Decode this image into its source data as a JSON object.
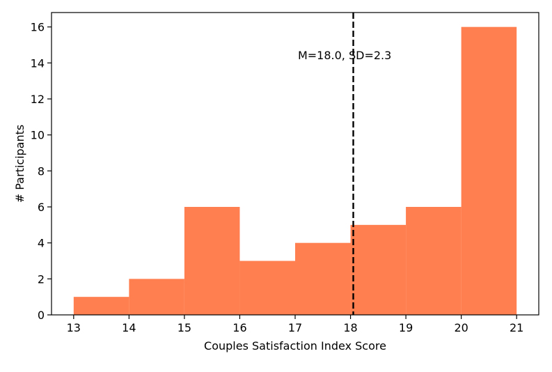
{
  "chart_data": {
    "type": "bar",
    "subtype": "histogram",
    "bins": [
      {
        "start": 13,
        "end": 14,
        "count": 1
      },
      {
        "start": 14,
        "end": 15,
        "count": 2
      },
      {
        "start": 15,
        "end": 16,
        "count": 6
      },
      {
        "start": 16,
        "end": 17,
        "count": 3
      },
      {
        "start": 17,
        "end": 18,
        "count": 4
      },
      {
        "start": 18,
        "end": 19,
        "count": 5
      },
      {
        "start": 19,
        "end": 20,
        "count": 6
      },
      {
        "start": 20,
        "end": 21,
        "count": 16
      }
    ],
    "xlabel": "Couples Satisfaction Index Score",
    "ylabel": "# Participants",
    "xlim": [
      12.6,
      21.4
    ],
    "ylim": [
      0,
      16.8
    ],
    "xticks": [
      "13",
      "14",
      "15",
      "16",
      "17",
      "18",
      "19",
      "20",
      "21"
    ],
    "yticks": [
      "0",
      "2",
      "4",
      "6",
      "8",
      "10",
      "12",
      "14",
      "16"
    ],
    "mean_line": {
      "x": 18.05,
      "style": "dashed",
      "color": "#000000"
    },
    "annotation": {
      "text": "M=18.0, SD=2.3",
      "x": 17.05,
      "y": 14.2
    },
    "bar_color": "#ff7f50",
    "grid": false,
    "legend": "none"
  }
}
